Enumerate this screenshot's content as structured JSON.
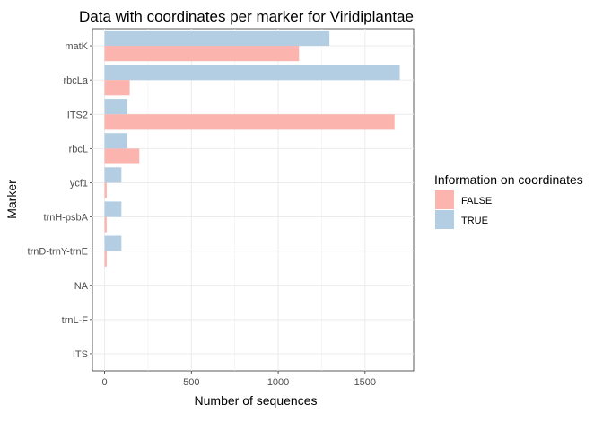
{
  "chart_data": {
    "type": "bar",
    "orientation": "horizontal",
    "title": "Data with coordinates per marker for Viridiplantae",
    "xlabel": "Number of sequences",
    "ylabel": "Marker",
    "xlim": [
      -70,
      1780
    ],
    "xticks": [
      0,
      500,
      1000,
      1500
    ],
    "grid": true,
    "legend": {
      "title": "Information on coordinates",
      "placement": "right",
      "entries": [
        {
          "name": "FALSE",
          "color": "#fbb4ae"
        },
        {
          "name": "TRUE",
          "color": "#b3cde3"
        }
      ]
    },
    "categories": [
      "matK",
      "rbcLa",
      "ITS2",
      "rbcL",
      "ycf1",
      "trnH-psbA",
      "trnD-trnY-trnE",
      "NA",
      "trnL-F",
      "ITS"
    ],
    "series": [
      {
        "name": "FALSE",
        "color": "#fbb4ae",
        "values": [
          1120,
          145,
          1670,
          200,
          12,
          12,
          12,
          0,
          0,
          0
        ]
      },
      {
        "name": "TRUE",
        "color": "#b3cde3",
        "values": [
          1295,
          1700,
          130,
          130,
          97,
          97,
          97,
          0,
          0,
          0
        ]
      }
    ]
  }
}
